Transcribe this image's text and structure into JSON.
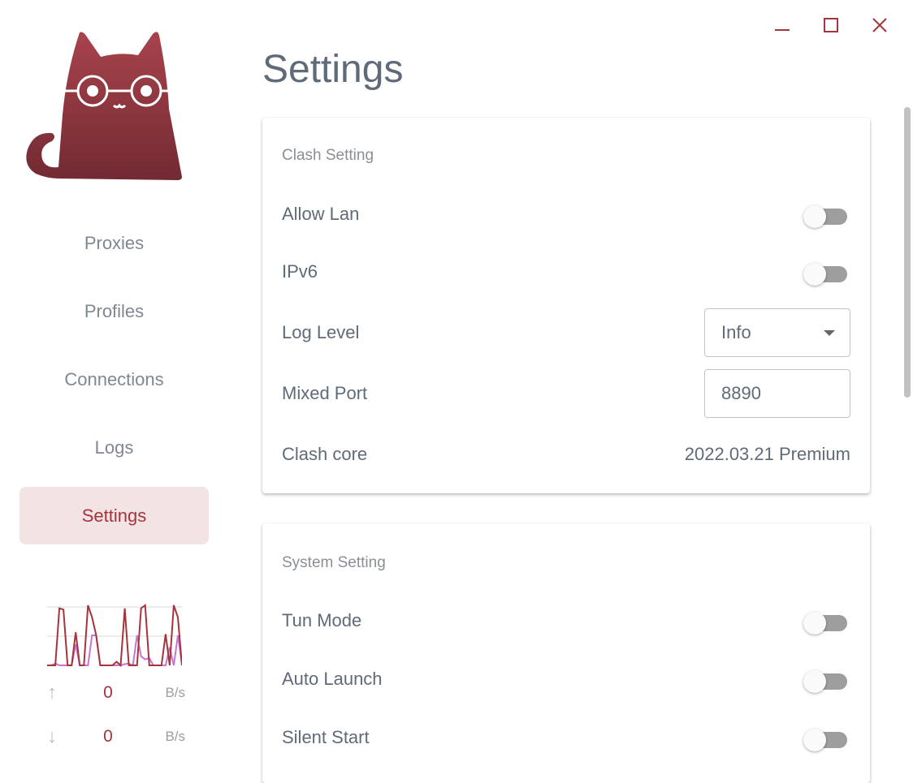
{
  "window_controls": {
    "minimize": "minimize-icon",
    "maximize": "maximize-icon",
    "close": "close-icon",
    "color": "#a5343d"
  },
  "sidebar": {
    "logo": "cat-with-glasses-logo",
    "items": [
      {
        "label": "Proxies",
        "active": false
      },
      {
        "label": "Profiles",
        "active": false
      },
      {
        "label": "Connections",
        "active": false
      },
      {
        "label": "Logs",
        "active": false
      },
      {
        "label": "Settings",
        "active": true
      }
    ],
    "traffic_graph": {
      "upload_color": "#a5343d",
      "download_color": "#c774d4",
      "upload": [
        0,
        0,
        0,
        0.95,
        0.93,
        0,
        0,
        0.55,
        0,
        0,
        1,
        0.8,
        0.5,
        0,
        0,
        0,
        0,
        0.06,
        0,
        0.95,
        0,
        0,
        0,
        0.95,
        1,
        0,
        0,
        0,
        0,
        0.52,
        0,
        1,
        0.8,
        0
      ],
      "download": [
        0,
        0,
        0.03,
        0,
        0,
        0,
        0,
        0.35,
        0,
        0,
        0,
        0.5,
        0.5,
        0,
        0,
        0,
        0,
        0,
        0,
        0.02,
        0.03,
        0,
        0.5,
        0.15,
        0.1,
        0.12,
        0,
        0,
        0,
        0,
        0.3,
        0,
        0.5,
        0
      ]
    },
    "traffic": {
      "up_value": "0",
      "up_unit": "B/s",
      "down_value": "0",
      "down_unit": "B/s"
    }
  },
  "main": {
    "title": "Settings",
    "clash_setting": {
      "title": "Clash Setting",
      "allow_lan": {
        "label": "Allow Lan",
        "on": false
      },
      "ipv6": {
        "label": "IPv6",
        "on": false
      },
      "log_level": {
        "label": "Log Level",
        "value": "Info"
      },
      "mixed_port": {
        "label": "Mixed Port",
        "value": "8890"
      },
      "clash_core": {
        "label": "Clash core",
        "value": "2022.03.21 Premium"
      }
    },
    "system_setting": {
      "title": "System Setting",
      "tun_mode": {
        "label": "Tun Mode",
        "on": false
      },
      "auto_launch": {
        "label": "Auto Launch",
        "on": false
      },
      "silent_start": {
        "label": "Silent Start",
        "on": false
      }
    }
  }
}
